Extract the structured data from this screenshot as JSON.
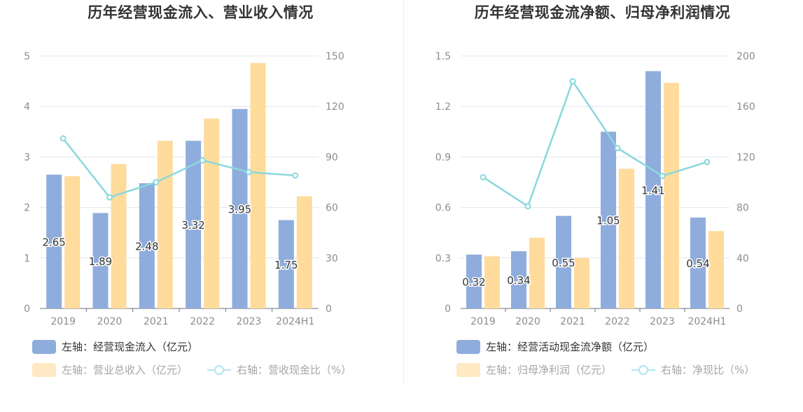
{
  "chart_data": [
    {
      "type": "bar",
      "title": "历年经营现金流入、营业收入情况",
      "categories": [
        "2019",
        "2020",
        "2021",
        "2022",
        "2023",
        "2024H1"
      ],
      "left_axis": {
        "ticks": [
          "0",
          "1",
          "2",
          "3",
          "4",
          "5"
        ],
        "ylim": [
          0,
          5
        ]
      },
      "right_axis": {
        "ticks": [
          "0",
          "30",
          "60",
          "90",
          "120",
          "150"
        ],
        "ylim": [
          0,
          150
        ]
      },
      "grid": true,
      "legend_placement": "bottom-left",
      "series": [
        {
          "name": "左轴：经营现金流入（亿元）",
          "type": "bar",
          "axis": "left",
          "color": "#8eaddc",
          "values": [
            2.65,
            1.89,
            2.48,
            3.32,
            3.95,
            1.75
          ],
          "labels": [
            "2.65",
            "1.89",
            "2.48",
            "3.32",
            "3.95",
            "1.75"
          ]
        },
        {
          "name": "左轴：营业总收入（亿元）",
          "type": "bar",
          "axis": "left",
          "color": "#ffdb9c",
          "values": [
            2.62,
            2.86,
            3.32,
            3.76,
            4.86,
            2.22
          ]
        },
        {
          "name": "右轴：营收现金比（%）",
          "type": "line",
          "axis": "right",
          "color": "#88d8de",
          "values": [
            101,
            66,
            75,
            88,
            81,
            79
          ]
        }
      ]
    },
    {
      "type": "bar",
      "title": "历年经营现金流净额、归母净利润情况",
      "categories": [
        "2019",
        "2020",
        "2021",
        "2022",
        "2023",
        "2024H1"
      ],
      "left_axis": {
        "ticks": [
          "0",
          "0.3",
          "0.6",
          "0.9",
          "1.2",
          "1.5"
        ],
        "ylim": [
          0,
          1.5
        ]
      },
      "right_axis": {
        "ticks": [
          "0",
          "40",
          "80",
          "120",
          "160",
          "200"
        ],
        "ylim": [
          0,
          200
        ]
      },
      "grid": true,
      "legend_placement": "bottom-left",
      "series": [
        {
          "name": "左轴：经营活动现金流净额（亿元）",
          "type": "bar",
          "axis": "left",
          "color": "#8eaddc",
          "values": [
            0.32,
            0.34,
            0.55,
            1.05,
            1.41,
            0.54
          ],
          "labels": [
            "0.32",
            "0.34",
            "0.55",
            "1.05",
            "1.41",
            "0.54"
          ]
        },
        {
          "name": "左轴：归母净利润（亿元）",
          "type": "bar",
          "axis": "left",
          "color": "#ffdb9c",
          "values": [
            0.31,
            0.42,
            0.3,
            0.83,
            1.34,
            0.46
          ]
        },
        {
          "name": "右轴：净现比（%）",
          "type": "line",
          "axis": "right",
          "color": "#88d8de",
          "values": [
            104,
            81,
            180,
            127,
            105,
            116
          ]
        }
      ]
    }
  ]
}
